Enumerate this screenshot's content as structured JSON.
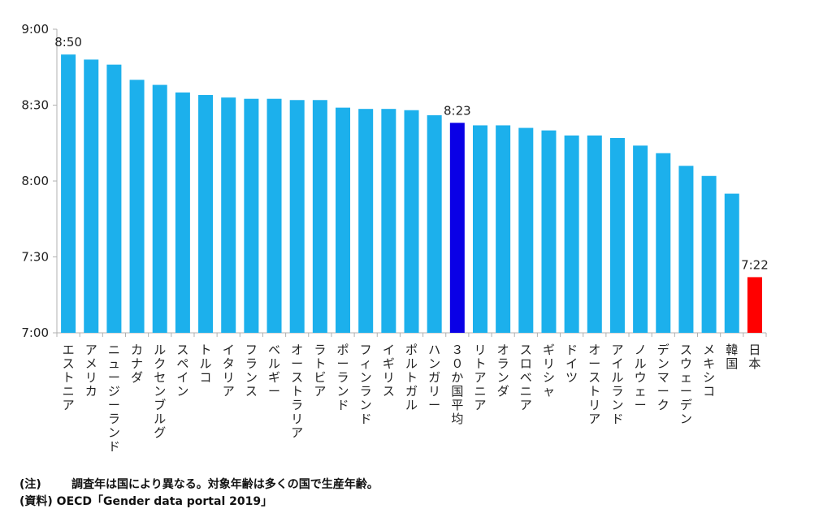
{
  "chart_data": {
    "type": "bar",
    "title": "",
    "xlabel": "",
    "ylabel": "",
    "ylim_minutes": [
      420,
      540
    ],
    "ytick_minutes": [
      420,
      450,
      480,
      510,
      540
    ],
    "ytick_labels": [
      "7:00",
      "7:30",
      "8:00",
      "8:30",
      "9:00"
    ],
    "categories": [
      "エストニア",
      "アメリカ",
      "ニュージーランド",
      "カナダ",
      "ルクセンブルグ",
      "スペイン",
      "トルコ",
      "イタリア",
      "フランス",
      "ベルギー",
      "オーストラリア",
      "ラトビア",
      "ポーランド",
      "フィンランド",
      "イギリス",
      "ポルトガル",
      "ハンガリー",
      "３０か国平均",
      "リトアニア",
      "オランダ",
      "スロベニア",
      "ギリシャ",
      "ドイツ",
      "オーストリア",
      "アイルランド",
      "ノルウェー",
      "デンマーク",
      "スウェーデン",
      "メキシコ",
      "韓国",
      "日本"
    ],
    "values_minutes": [
      530,
      528,
      526,
      520,
      518,
      515,
      514,
      513,
      512.5,
      512.5,
      512,
      512,
      509,
      508.5,
      508.5,
      508,
      506,
      503,
      502,
      502,
      501,
      500,
      498,
      498,
      497,
      494,
      491,
      486,
      482,
      475,
      442
    ],
    "data_labels": [
      {
        "index": 0,
        "text": "8:50"
      },
      {
        "index": 17,
        "text": "8:23"
      },
      {
        "index": 30,
        "text": "7:22"
      }
    ],
    "colors": {
      "default": "#1cb0ec",
      "average": "#0a00e6",
      "japan": "#ff0000",
      "axis": "#b0b0b0",
      "text": "#222222"
    },
    "highlight": {
      "average_index": 17,
      "japan_index": 30
    }
  },
  "footnotes": {
    "note_tag": "(注)",
    "note_text": "調査年は国により異なる。対象年齢は多くの国で生産年齢。",
    "source_tag": "(資料)",
    "source_text": "OECD「Gender data portal 2019」"
  }
}
